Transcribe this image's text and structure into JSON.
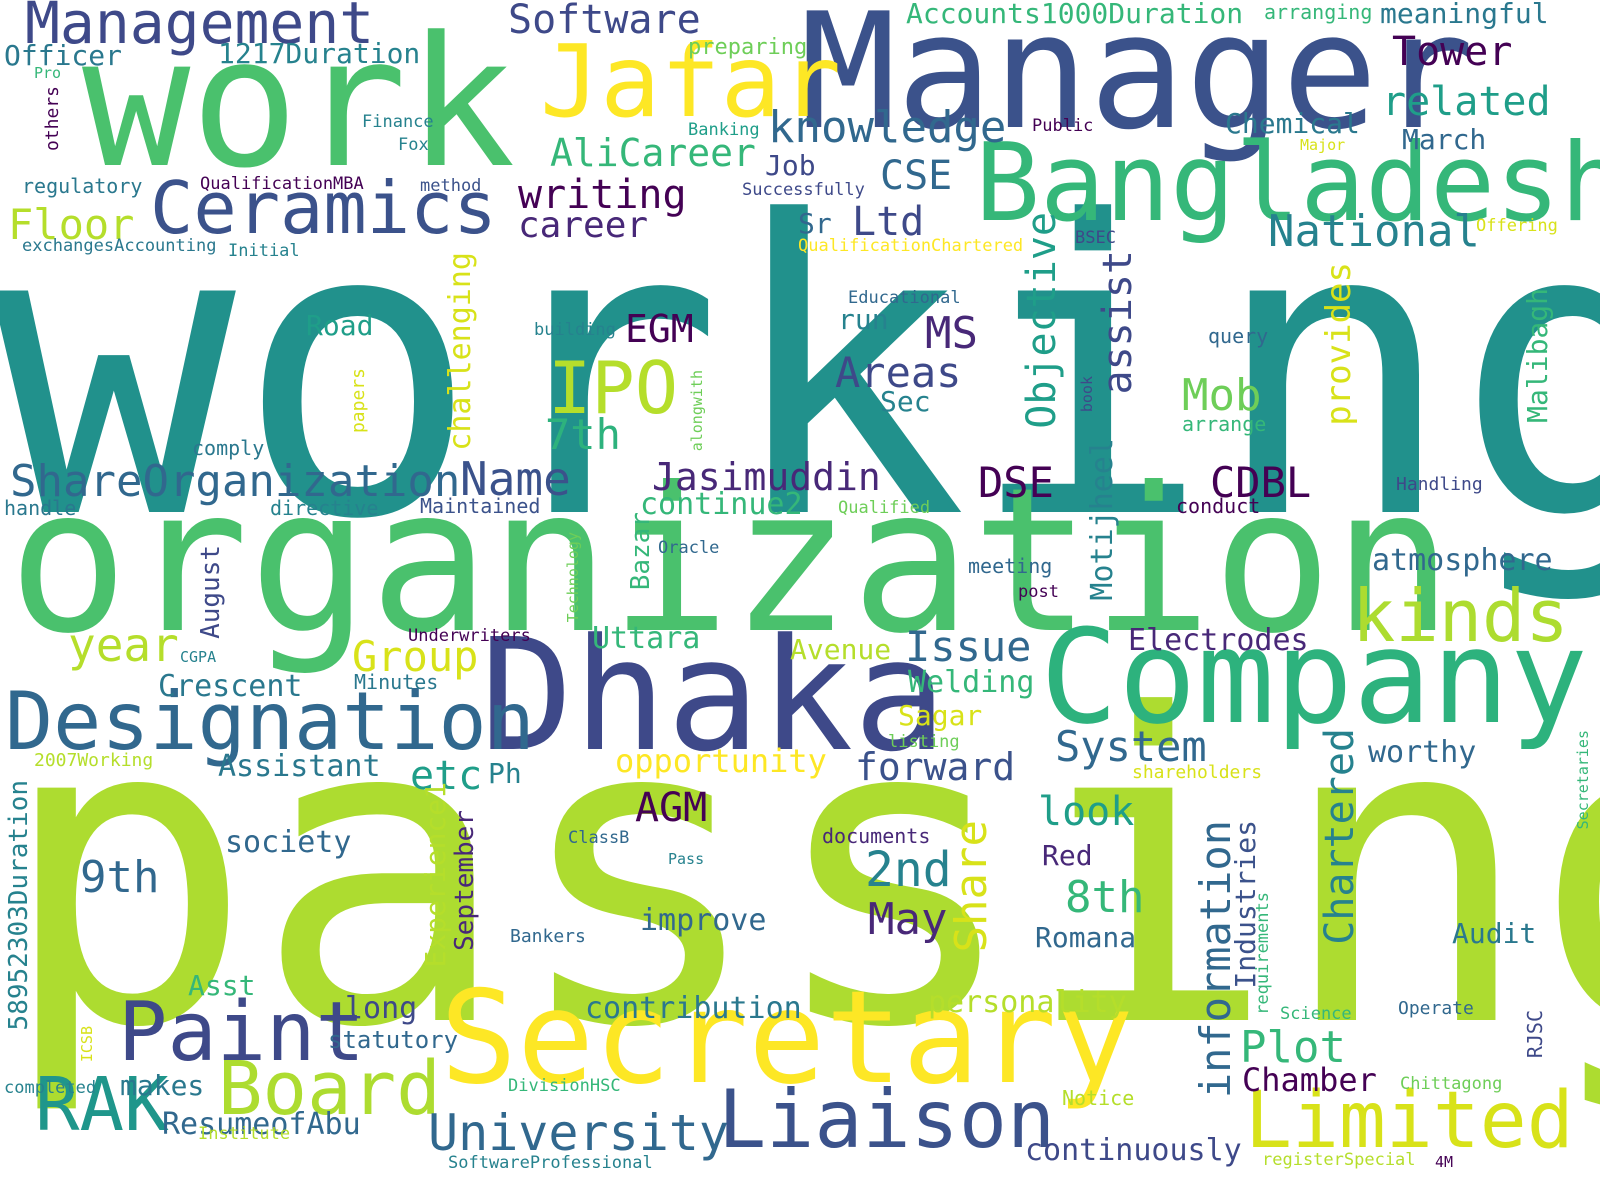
{
  "colors": {
    "background": "#ffffff",
    "palette": [
      "#440154",
      "#482878",
      "#3e4989",
      "#31688e",
      "#26828e",
      "#1f9e89",
      "#35b779",
      "#6ece58",
      "#b5de2b",
      "#fde725"
    ]
  },
  "words": {
    "working": "working",
    "passing": "passing",
    "organization": "organization",
    "work": "work",
    "manager": "Manager",
    "bangladesh": "Bangladesh",
    "dhaka": "Dhaka",
    "company": "Company",
    "secretary": "Secretary",
    "jafar": "Jafar",
    "management": "Management",
    "ceramics": "Ceramics",
    "designation": "Designation",
    "paint": "Paint",
    "board": "Board",
    "rak": "RAK",
    "liaison": "Liaison",
    "limited": "Limited",
    "university": "University",
    "kinds": "kinds",
    "ipo": "IPO",
    "software": "Software",
    "tower": "Tower",
    "knowledge": "knowledge",
    "related": "related",
    "alicareer": "AliCareer",
    "writing": "writing",
    "career": "career",
    "floor": "Floor",
    "ltd": "Ltd",
    "cse": "CSE",
    "national": "National",
    "shareorganization": "ShareOrganization",
    "name": "Name",
    "jasimuddin": "Jasimuddin",
    "dse": "DSE",
    "cdbl": "CDBL",
    "ms": "MS",
    "egm": "EGM",
    "areas": "Areas",
    "mob": "Mob",
    "seventh": "7th",
    "year": "year",
    "group": "Group",
    "issue": "Issue",
    "system": "System",
    "forward": "forward",
    "etc": "etc",
    "agm": "AGM",
    "ninth": "9th",
    "second": "2nd",
    "eighth": "8th",
    "may": "May",
    "share": "Share",
    "chartered": "Chartered",
    "information": "information",
    "plot": "Plot",
    "chamber": "Chamber",
    "look": "look",
    "objective": "Objective",
    "assist": "assist",
    "provides": "provides",
    "motijheel": "Motijheel",
    "malibagh": "Malibagh",
    "challenging": "challenging",
    "opportunity": "opportunity",
    "assistant": "Assistant",
    "society": "society",
    "crescent": "Crescent",
    "uttara": "Uttara",
    "welding": "Welding",
    "sagar": "Sagar",
    "electrodes": "Electrodes",
    "atmosphere": "atmosphere",
    "worthy": "worthy",
    "avenue": "Avenue",
    "continue2": "continue2",
    "accounts1000duration": "Accounts1000Duration",
    "meaningful": "meaningful",
    "arranging": "arranging",
    "officer": "Officer",
    "duration1217": "1217Duration",
    "preparing": "preparing",
    "chemical": "Chemical",
    "march": "March",
    "job": "Job",
    "sr": "Sr",
    "road": "Road",
    "run": "run",
    "sec": "Sec",
    "comply": "comply",
    "handle": "handle",
    "directive": "directive",
    "maintained": "Maintained",
    "qualified": "Qualified",
    "conduct": "conduct",
    "handling": "Handling",
    "oracle": "Oracle",
    "meeting": "meeting",
    "post": "post",
    "underwriters": "Underwriters",
    "cgpa": "CGPA",
    "minutes": "Minutes",
    "listing": "listing",
    "shareholders": "shareholders",
    "working2007": "2007Working",
    "ph": "Ph",
    "asst": "Asst",
    "long": "long",
    "statutory": "statutory",
    "contribution": "contribution",
    "improve": "improve",
    "bankers": "Bankers",
    "classb": "ClassB",
    "pass": "Pass",
    "documents": "documents",
    "red": "Red",
    "romana": "Romana",
    "personality": "personality",
    "audit": "Audit",
    "operate": "Operate",
    "science": "Science",
    "makes": "makes",
    "resumeofabu": "ResumeofAbu",
    "completed": "completed",
    "institute": "Institute",
    "divisionhsc": "DivisionHSC",
    "softwareprofessional": "SoftwareProfessional",
    "notice": "Notice",
    "continuously": "continuously",
    "chittagong": "Chittagong",
    "registerspecial": "registerSpecial",
    "fourm": "4M",
    "rjsc": "RJSC",
    "secretaries": "Secretaries",
    "requirements": "requirements",
    "industries": "Industries",
    "experience1": "Experience1",
    "september": "September",
    "august": "August",
    "bazar": "Bazar",
    "technology": "Technology",
    "alongwith": "alongwith",
    "book": "book",
    "papers": "papers",
    "duration58952303": "58952303Duration",
    "icsb": "ICSB",
    "pro": "Pro",
    "others": "others",
    "finance": "Finance",
    "fox": "Fox",
    "regulatory": "regulatory",
    "qualificationmba": "QualificationMBA",
    "method": "method",
    "exchangesaccounting": "exchangesAccounting",
    "initial": "Initial",
    "banking": "Banking",
    "successfully": "Successfully",
    "public": "Public",
    "major": "Major",
    "offering": "Offering",
    "qualificationchartered": "QualificationChartered",
    "bsec": "BSEC",
    "educational": "Educational",
    "building": "building",
    "query": "query",
    "arrange": "arrange"
  }
}
